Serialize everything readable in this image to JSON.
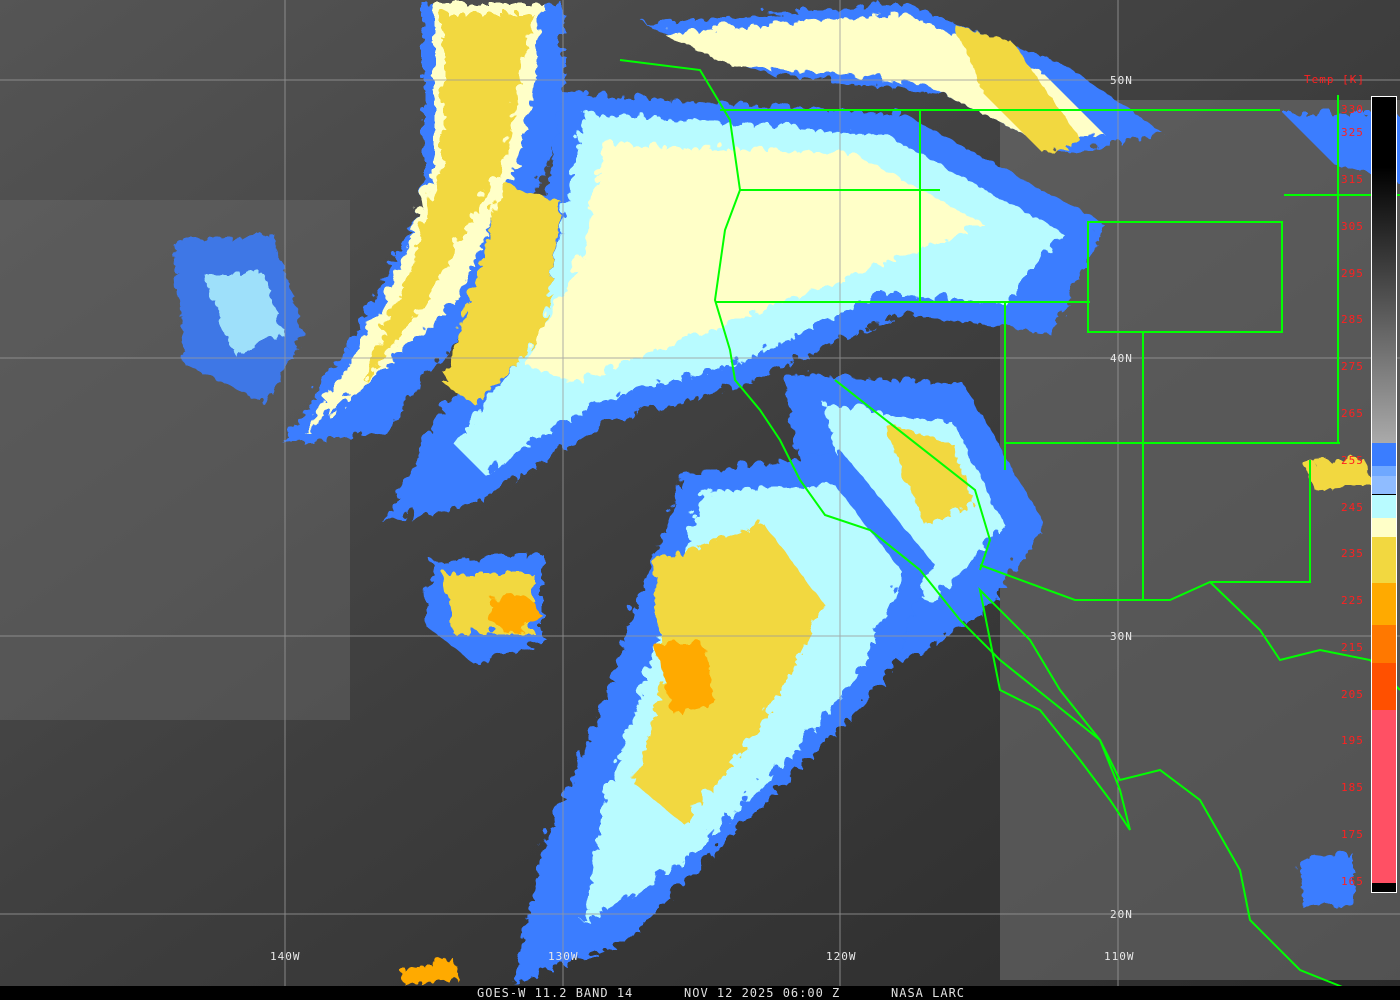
{
  "caption": {
    "satellite": "GOES-W 11.2 BAND 14",
    "datetime": "NOV 12 2025 06:00 Z",
    "source": "NASA LARC"
  },
  "longitude_labels": [
    "140W",
    "130W",
    "120W",
    "110W"
  ],
  "latitude_labels": [
    "50N",
    "40N",
    "30N",
    "20N"
  ],
  "colorbar": {
    "title": "Temp [K]",
    "ticks": [
      "330",
      "325",
      "315",
      "305",
      "295",
      "285",
      "275",
      "265",
      "255",
      "245",
      "235",
      "225",
      "215",
      "205",
      "195",
      "185",
      "175",
      "165"
    ],
    "range_k": [
      163,
      333
    ],
    "segments": [
      {
        "from": 259,
        "to": 254,
        "color": "#3a7dff"
      },
      {
        "from": 254,
        "to": 252,
        "color": "#6fa8ff"
      },
      {
        "from": 252,
        "to": 248,
        "color": "#8fbcff"
      },
      {
        "from": 248,
        "to": 243,
        "color": "#b8fbff"
      },
      {
        "from": 243,
        "to": 239,
        "color": "#ffffc8"
      },
      {
        "from": 239,
        "to": 229,
        "color": "#f2d840"
      },
      {
        "from": 229,
        "to": 220,
        "color": "#ffaa00"
      },
      {
        "from": 220,
        "to": 212,
        "color": "#ff7800"
      },
      {
        "from": 212,
        "to": 202,
        "color": "#ff5000"
      },
      {
        "from": 202,
        "to": 165,
        "color": "#ff5064"
      }
    ]
  },
  "colors": {
    "coastline": "#00ff00",
    "grid": "#9a9a9a",
    "label_red": "#ff2020"
  }
}
